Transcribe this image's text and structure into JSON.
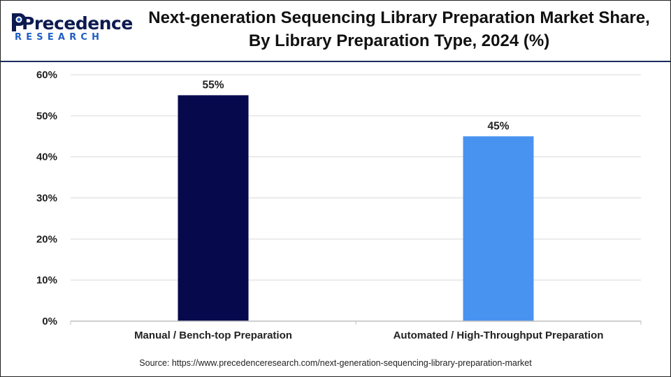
{
  "brand": {
    "name": "Precedence",
    "sub": "RESEARCH"
  },
  "header": {
    "title": "Next-generation Sequencing Library Preparation Market Share, By Library Preparation Type, 2024 (%)"
  },
  "footer": {
    "source": "Source: https://www.precedenceresearch.com/next-generation-sequencing-library-preparation-market"
  },
  "colors": {
    "manual": "#060a4d",
    "automated": "#4893f0",
    "header_rule": "#1a2b5e",
    "grid": "#d9d9d9"
  },
  "chart_data": {
    "type": "bar",
    "title": "Next-generation Sequencing Library Preparation Market Share, By Library Preparation Type, 2024 (%)",
    "categories": [
      "Manual / Bench-top Preparation",
      "Automated / High-Throughput Preparation"
    ],
    "values": [
      55,
      45
    ],
    "data_labels": [
      "55%",
      "45%"
    ],
    "bar_colors": [
      "#060a4d",
      "#4893f0"
    ],
    "ylim": [
      0,
      60
    ],
    "yticks": [
      0,
      10,
      20,
      30,
      40,
      50,
      60
    ],
    "ytick_labels": [
      "0%",
      "10%",
      "20%",
      "30%",
      "40%",
      "50%",
      "60%"
    ],
    "xlabel": "",
    "ylabel": "",
    "grid": true,
    "legend": "none"
  }
}
